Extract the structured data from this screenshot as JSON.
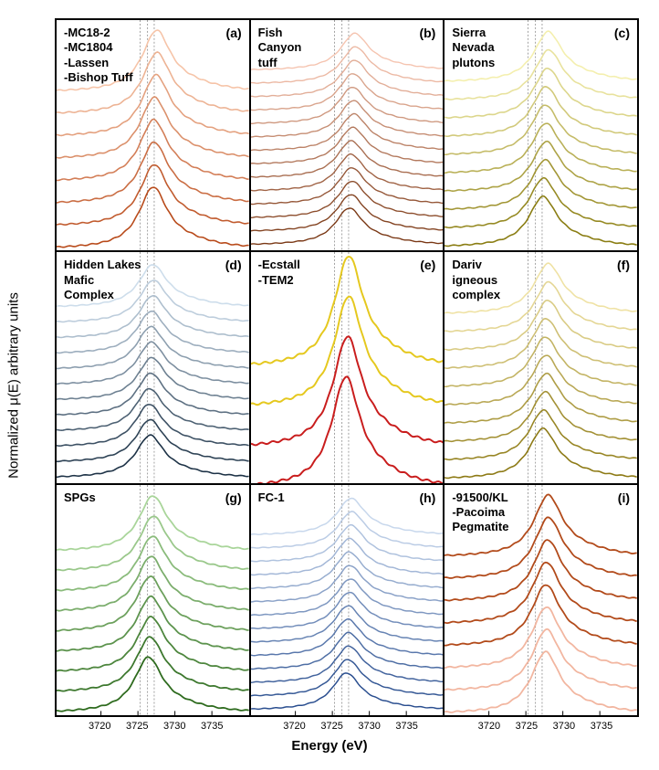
{
  "axis": {
    "y_label": "Normalized μ(E) arbitrary units",
    "x_label": "Energy (eV)",
    "x_domain": [
      3714,
      3740
    ],
    "x_ticks": [
      3720,
      3725,
      3730,
      3735
    ],
    "ref_lines_x": [
      3725.3,
      3726.3,
      3727.2
    ]
  },
  "panels": [
    {
      "letter": "(a)",
      "title": "-MC18-2\n-MC1804\n-Lassen\n-Bishop Tuff",
      "n_curves": 8,
      "peak_shift_range": [
        3725.0,
        3727.5
      ],
      "color_light": "#f6c4a8",
      "color_dark": "#b84a1a",
      "line_width": 1.6
    },
    {
      "letter": "(b)",
      "title": "Fish\nCanyon\ntuff",
      "n_curves": 14,
      "peak_shift_range": [
        3725.0,
        3728.0
      ],
      "color_light": "#f5c4b0",
      "color_dark": "#7a3815",
      "line_width": 1.4
    },
    {
      "letter": "(c)",
      "title": "Sierra\nNevada\nplutons",
      "n_curves": 10,
      "peak_shift_range": [
        3725.0,
        3728.0
      ],
      "color_light": "#f4efae",
      "color_dark": "#8a7d12",
      "line_width": 1.6
    },
    {
      "letter": "(d)",
      "title": "Hidden Lakes\nMafic\nComplex",
      "n_curves": 12,
      "peak_shift_range": [
        3724.5,
        3727.0
      ],
      "color_light": "#cdddeb",
      "color_dark": "#1d3246",
      "line_width": 1.6
    },
    {
      "letter": "(e)",
      "title": "-Ecstall\n-TEM2",
      "n_curves": 4,
      "peak_shift_range": [
        3725.5,
        3727.2
      ],
      "colors_explicit": [
        "#e5c81e",
        "#e5c81e",
        "#c91d1d",
        "#c91d1d"
      ],
      "line_width": 2.0
    },
    {
      "letter": "(f)",
      "title": "Dariv\nigneous\ncomplex",
      "n_curves": 10,
      "peak_shift_range": [
        3725.0,
        3728.0
      ],
      "color_light": "#efe2a4",
      "color_dark": "#8d7a15",
      "line_width": 1.6
    },
    {
      "letter": "(g)",
      "title": "SPGs",
      "n_curves": 9,
      "peak_shift_range": [
        3724.5,
        3727.0
      ],
      "color_light": "#a9d59a",
      "color_dark": "#2e6b1e",
      "line_width": 1.8
    },
    {
      "letter": "(h)",
      "title": "FC-1",
      "n_curves": 14,
      "peak_shift_range": [
        3725.0,
        3727.5
      ],
      "color_light": "#c7d7ec",
      "color_dark": "#2a4e8f",
      "line_width": 1.5
    },
    {
      "letter": "(i)",
      "title": "-91500/KL\n-Pacoima\nPegmatite",
      "n_curves": 8,
      "peak_shift_range": [
        3726.0,
        3728.0
      ],
      "colors_explicit": [
        "#b24a1a",
        "#b24a1a",
        "#b24a1a",
        "#b24a1a",
        "#b24a1a",
        "#f2b6a0",
        "#f2b6a0",
        "#f2b6a0"
      ],
      "line_width": 1.8
    }
  ],
  "style": {
    "panel_border_color": "#000000",
    "background": "#ffffff",
    "title_fontsize": 13,
    "letter_fontsize": 14,
    "tick_fontsize": 11
  }
}
